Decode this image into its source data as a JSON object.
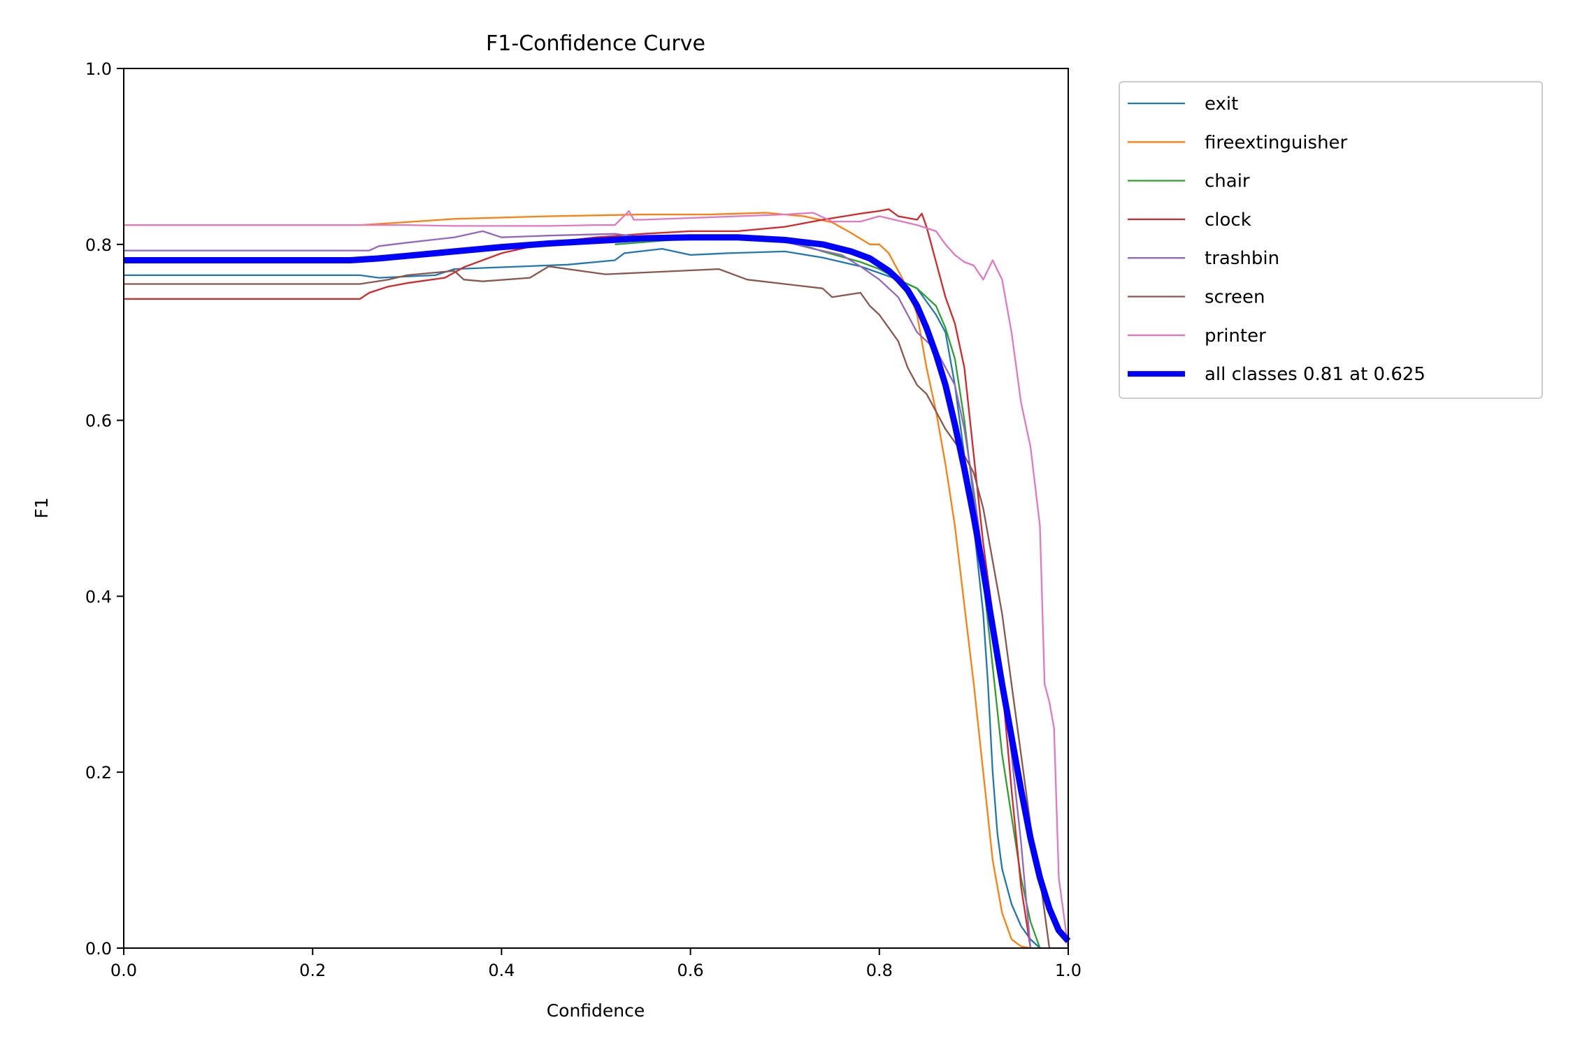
{
  "chart_data": {
    "type": "line",
    "title": "F1-Confidence Curve",
    "xlabel": "Confidence",
    "ylabel": "F1",
    "xlim": [
      0,
      1
    ],
    "ylim": [
      0,
      1
    ],
    "xticks": [
      "0.0",
      "0.2",
      "0.4",
      "0.6",
      "0.8",
      "1.0"
    ],
    "yticks": [
      "0.0",
      "0.2",
      "0.4",
      "0.6",
      "0.8",
      "1.0"
    ],
    "grid": false,
    "legend_position": "outside-top-right",
    "series": [
      {
        "name": "exit",
        "color": "#1f77b4",
        "line_weight": "thin",
        "x": [
          0,
          0.25,
          0.27,
          0.33,
          0.35,
          0.4,
          0.47,
          0.52,
          0.53,
          0.57,
          0.6,
          0.64,
          0.7,
          0.74,
          0.78,
          0.82,
          0.84,
          0.86,
          0.87,
          0.88,
          0.89,
          0.9,
          0.91,
          0.915,
          0.92,
          0.925,
          0.93,
          0.94,
          0.95,
          0.96,
          0.97
        ],
        "y": [
          0.765,
          0.765,
          0.762,
          0.765,
          0.772,
          0.774,
          0.777,
          0.782,
          0.79,
          0.795,
          0.788,
          0.79,
          0.792,
          0.785,
          0.775,
          0.76,
          0.75,
          0.72,
          0.7,
          0.64,
          0.56,
          0.48,
          0.38,
          0.3,
          0.2,
          0.13,
          0.09,
          0.05,
          0.025,
          0.01,
          0.0
        ]
      },
      {
        "name": "fireextinguisher",
        "color": "#ff7f0e",
        "line_weight": "thin",
        "x": [
          0,
          0.25,
          0.28,
          0.35,
          0.45,
          0.55,
          0.62,
          0.68,
          0.72,
          0.75,
          0.77,
          0.79,
          0.8,
          0.81,
          0.82,
          0.83,
          0.84,
          0.85,
          0.86,
          0.87,
          0.88,
          0.89,
          0.9,
          0.91,
          0.92,
          0.93,
          0.94,
          0.95,
          0.96
        ],
        "y": [
          0.822,
          0.822,
          0.824,
          0.829,
          0.832,
          0.834,
          0.834,
          0.836,
          0.832,
          0.825,
          0.813,
          0.8,
          0.8,
          0.79,
          0.77,
          0.75,
          0.72,
          0.66,
          0.61,
          0.55,
          0.48,
          0.39,
          0.3,
          0.2,
          0.1,
          0.04,
          0.01,
          0.002,
          0.0
        ]
      },
      {
        "name": "chair",
        "color": "#2ca02c",
        "line_weight": "thin",
        "x": [
          0.52,
          0.58,
          0.64,
          0.7,
          0.74,
          0.78,
          0.8,
          0.82,
          0.84,
          0.86,
          0.87,
          0.88,
          0.89,
          0.9,
          0.91,
          0.92,
          0.93,
          0.94,
          0.95,
          0.96,
          0.97
        ],
        "y": [
          0.8,
          0.805,
          0.808,
          0.806,
          0.792,
          0.78,
          0.772,
          0.76,
          0.75,
          0.73,
          0.705,
          0.67,
          0.6,
          0.51,
          0.42,
          0.32,
          0.22,
          0.15,
          0.08,
          0.03,
          0.0
        ]
      },
      {
        "name": "clock",
        "color": "#d62728",
        "line_weight": "thin",
        "x": [
          0,
          0.25,
          0.26,
          0.28,
          0.3,
          0.34,
          0.36,
          0.4,
          0.45,
          0.5,
          0.55,
          0.6,
          0.65,
          0.7,
          0.74,
          0.78,
          0.8,
          0.81,
          0.82,
          0.84,
          0.845,
          0.85,
          0.86,
          0.87,
          0.88,
          0.89,
          0.9,
          0.91,
          0.92,
          0.93,
          0.94,
          0.95,
          0.96
        ],
        "y": [
          0.738,
          0.738,
          0.745,
          0.752,
          0.756,
          0.762,
          0.774,
          0.79,
          0.802,
          0.808,
          0.812,
          0.815,
          0.815,
          0.82,
          0.828,
          0.835,
          0.838,
          0.84,
          0.832,
          0.828,
          0.835,
          0.82,
          0.78,
          0.74,
          0.71,
          0.66,
          0.56,
          0.46,
          0.38,
          0.3,
          0.18,
          0.07,
          0.0
        ]
      },
      {
        "name": "trashbin",
        "color": "#9467bd",
        "line_weight": "thin",
        "x": [
          0,
          0.26,
          0.27,
          0.3,
          0.35,
          0.38,
          0.4,
          0.45,
          0.52,
          0.55,
          0.6,
          0.65,
          0.7,
          0.73,
          0.76,
          0.78,
          0.8,
          0.82,
          0.83,
          0.84,
          0.85,
          0.86,
          0.87,
          0.88,
          0.89,
          0.9,
          0.91,
          0.92,
          0.93,
          0.94,
          0.95,
          0.96
        ],
        "y": [
          0.793,
          0.793,
          0.798,
          0.802,
          0.808,
          0.815,
          0.808,
          0.81,
          0.812,
          0.808,
          0.806,
          0.808,
          0.803,
          0.795,
          0.788,
          0.775,
          0.76,
          0.74,
          0.72,
          0.7,
          0.69,
          0.68,
          0.66,
          0.64,
          0.59,
          0.52,
          0.44,
          0.37,
          0.3,
          0.22,
          0.12,
          0.0
        ]
      },
      {
        "name": "screen",
        "color": "#8c564b",
        "line_weight": "thin",
        "x": [
          0,
          0.25,
          0.28,
          0.3,
          0.35,
          0.36,
          0.38,
          0.43,
          0.45,
          0.51,
          0.55,
          0.63,
          0.66,
          0.74,
          0.75,
          0.78,
          0.79,
          0.8,
          0.82,
          0.83,
          0.84,
          0.85,
          0.86,
          0.87,
          0.88,
          0.89,
          0.9,
          0.91,
          0.92,
          0.93,
          0.94,
          0.95,
          0.96,
          0.97,
          0.98
        ],
        "y": [
          0.755,
          0.755,
          0.76,
          0.765,
          0.77,
          0.76,
          0.758,
          0.762,
          0.775,
          0.766,
          0.768,
          0.772,
          0.76,
          0.75,
          0.74,
          0.745,
          0.73,
          0.72,
          0.69,
          0.66,
          0.64,
          0.63,
          0.61,
          0.59,
          0.575,
          0.56,
          0.54,
          0.5,
          0.44,
          0.38,
          0.3,
          0.22,
          0.14,
          0.08,
          0.0
        ]
      },
      {
        "name": "printer",
        "color": "#e377c2",
        "line_weight": "thin",
        "x": [
          0,
          0.25,
          0.3,
          0.35,
          0.4,
          0.45,
          0.5,
          0.52,
          0.535,
          0.54,
          0.55,
          0.6,
          0.65,
          0.7,
          0.73,
          0.75,
          0.78,
          0.8,
          0.84,
          0.86,
          0.87,
          0.88,
          0.89,
          0.9,
          0.91,
          0.92,
          0.93,
          0.94,
          0.95,
          0.96,
          0.97,
          0.975,
          0.98,
          0.985,
          0.99,
          1.0
        ],
        "y": [
          0.822,
          0.822,
          0.822,
          0.821,
          0.821,
          0.821,
          0.822,
          0.822,
          0.838,
          0.828,
          0.828,
          0.83,
          0.832,
          0.834,
          0.836,
          0.826,
          0.826,
          0.832,
          0.822,
          0.815,
          0.8,
          0.788,
          0.78,
          0.776,
          0.76,
          0.782,
          0.76,
          0.7,
          0.62,
          0.57,
          0.48,
          0.3,
          0.28,
          0.25,
          0.08,
          0.0
        ]
      },
      {
        "name": "all classes 0.81 at 0.625",
        "color": "#0000ff",
        "line_weight": "thick",
        "x": [
          0,
          0.1,
          0.2,
          0.24,
          0.27,
          0.3,
          0.35,
          0.4,
          0.45,
          0.5,
          0.55,
          0.6,
          0.625,
          0.65,
          0.7,
          0.74,
          0.77,
          0.79,
          0.81,
          0.82,
          0.83,
          0.84,
          0.85,
          0.86,
          0.87,
          0.88,
          0.89,
          0.9,
          0.91,
          0.92,
          0.93,
          0.94,
          0.95,
          0.96,
          0.97,
          0.98,
          0.99,
          1.0
        ],
        "y": [
          0.782,
          0.782,
          0.782,
          0.782,
          0.784,
          0.787,
          0.792,
          0.797,
          0.801,
          0.804,
          0.807,
          0.808,
          0.808,
          0.808,
          0.805,
          0.8,
          0.792,
          0.784,
          0.77,
          0.76,
          0.748,
          0.73,
          0.705,
          0.675,
          0.64,
          0.595,
          0.545,
          0.49,
          0.43,
          0.365,
          0.3,
          0.24,
          0.18,
          0.125,
          0.08,
          0.045,
          0.02,
          0.008
        ]
      }
    ]
  }
}
